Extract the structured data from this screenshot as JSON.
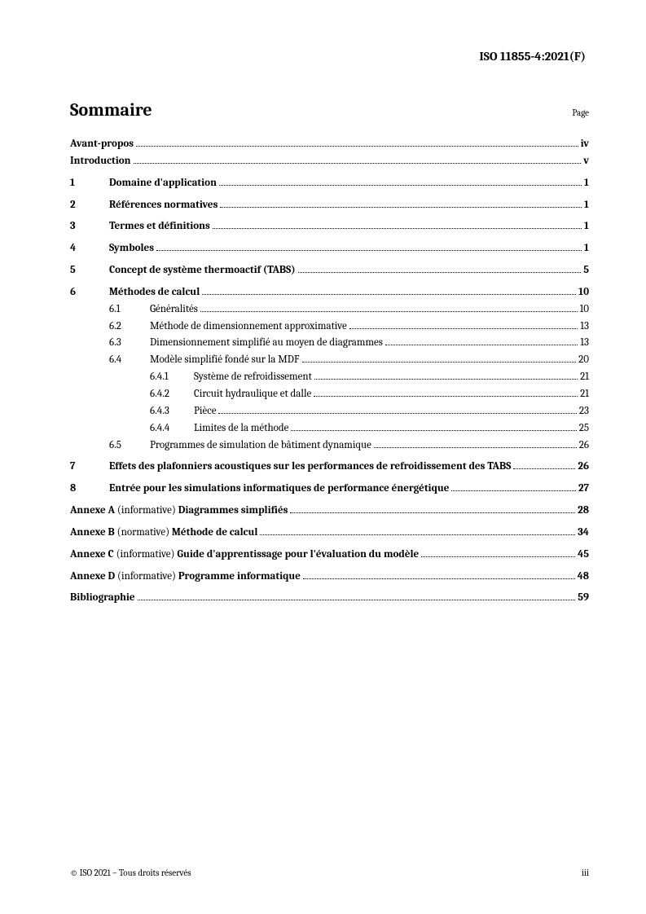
{
  "header": {
    "doc_id": "ISO 11855-4:2021(F)"
  },
  "heading": {
    "title": "Sommaire",
    "page_label": "Page"
  },
  "toc": [
    {
      "level": 0,
      "num": "",
      "title": "Avant-propos",
      "page": "iv",
      "bold": true,
      "gap": false
    },
    {
      "level": 0,
      "num": "",
      "title": "Introduction",
      "page": "v",
      "bold": true,
      "gap": false
    },
    {
      "level": 1,
      "num": "1",
      "title": "Domaine d'application",
      "page": "1",
      "bold": true,
      "gap": true
    },
    {
      "level": 1,
      "num": "2",
      "title": "Références normatives",
      "page": "1",
      "bold": true,
      "gap": true
    },
    {
      "level": 1,
      "num": "3",
      "title": "Termes et définitions",
      "page": "1",
      "bold": true,
      "gap": true
    },
    {
      "level": 1,
      "num": "4",
      "title": "Symboles",
      "page": "1",
      "bold": true,
      "gap": true
    },
    {
      "level": 1,
      "num": "5",
      "title": "Concept de système thermoactif (TABS)",
      "page": "5",
      "bold": true,
      "gap": true
    },
    {
      "level": 1,
      "num": "6",
      "title": "Méthodes de calcul",
      "page": "10",
      "bold": true,
      "gap": true
    },
    {
      "level": 2,
      "num": "6.1",
      "title": "Généralités",
      "page": "10",
      "bold": false,
      "gap": false
    },
    {
      "level": 2,
      "num": "6.2",
      "title": "Méthode de dimensionnement approximative",
      "page": "13",
      "bold": false,
      "gap": false
    },
    {
      "level": 2,
      "num": "6.3",
      "title": "Dimensionnement simplifié au moyen de diagrammes",
      "page": "13",
      "bold": false,
      "gap": false
    },
    {
      "level": 2,
      "num": "6.4",
      "title": "Modèle simplifié fondé sur la MDF",
      "page": "20",
      "bold": false,
      "gap": false
    },
    {
      "level": 3,
      "num": "6.4.1",
      "title": "Système de refroidissement",
      "page": "21",
      "bold": false,
      "gap": false
    },
    {
      "level": 3,
      "num": "6.4.2",
      "title": "Circuit hydraulique et dalle",
      "page": "21",
      "bold": false,
      "gap": false
    },
    {
      "level": 3,
      "num": "6.4.3",
      "title": "Pièce",
      "page": "23",
      "bold": false,
      "gap": false
    },
    {
      "level": 3,
      "num": "6.4.4",
      "title": "Limites de la méthode",
      "page": "25",
      "bold": false,
      "gap": false
    },
    {
      "level": 2,
      "num": "6.5",
      "title": "Programmes de simulation de bâtiment dynamique",
      "page": "26",
      "bold": false,
      "gap": false
    },
    {
      "level": 1,
      "num": "7",
      "title": "Effets des plafonniers acoustiques sur les performances de refroidissement des TABS",
      "page": "26",
      "bold": true,
      "gap": true
    },
    {
      "level": 1,
      "num": "8",
      "title": "Entrée pour les simulations informatiques de performance énergétique",
      "page": "27",
      "bold": true,
      "gap": true
    },
    {
      "level": 0,
      "num": "",
      "title_prefix": "Annexe A ",
      "title_mid": "(informative) ",
      "title_suffix": "Diagrammes simplifiés",
      "page": "28",
      "bold": true,
      "gap": true,
      "mixed": true
    },
    {
      "level": 0,
      "num": "",
      "title_prefix": "Annexe B ",
      "title_mid": "(normative) ",
      "title_suffix": "Méthode de calcul",
      "page": "34",
      "bold": true,
      "gap": true,
      "mixed": true
    },
    {
      "level": 0,
      "num": "",
      "title_prefix": "Annexe C ",
      "title_mid": "(informative) ",
      "title_suffix": "Guide d'apprentissage pour l'évaluation du modèle",
      "page": "45",
      "bold": true,
      "gap": true,
      "mixed": true
    },
    {
      "level": 0,
      "num": "",
      "title_prefix": "Annexe D ",
      "title_mid": "(informative) ",
      "title_suffix": "Programme informatique",
      "page": "48",
      "bold": true,
      "gap": true,
      "mixed": true
    },
    {
      "level": 0,
      "num": "",
      "title": "Bibliographie",
      "page": "59",
      "bold": true,
      "gap": true
    }
  ],
  "footer": {
    "copyright": "© ISO 2021 – Tous droits réservés",
    "page_num": "iii"
  }
}
